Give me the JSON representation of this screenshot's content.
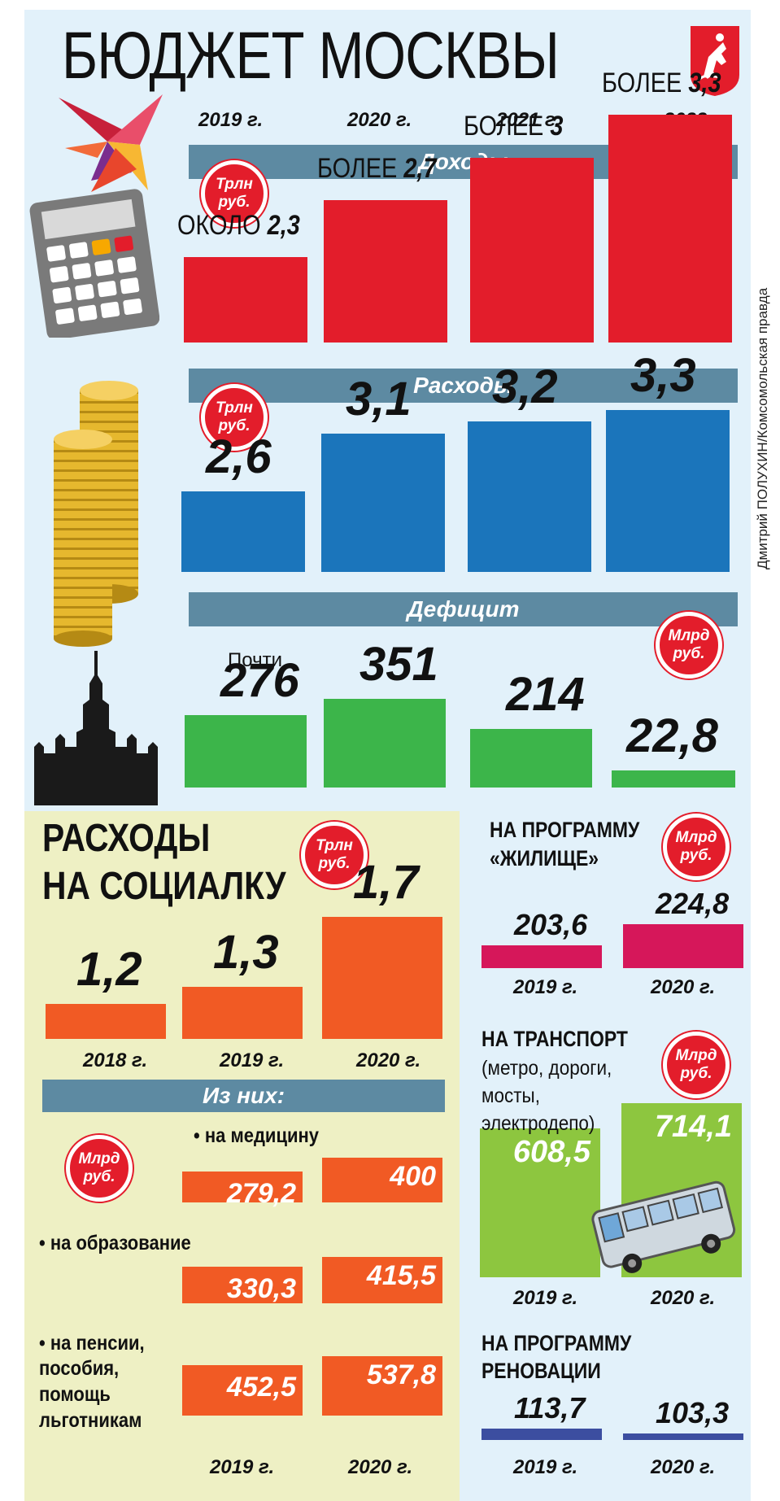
{
  "title": "БЮДЖЕТ МОСКВЫ",
  "credit": "Дмитрий ПОЛУХИН/Комсомольская правда",
  "colors": {
    "income": "#e31d2b",
    "expense": "#1b75bb",
    "deficit": "#3cb54a",
    "social": "#f15a24",
    "housing": "#d6175a",
    "transport": "#8dc63f",
    "renovation": "#3c4ea0",
    "ribbon": "#5d8aa2"
  },
  "units": {
    "trln_line1": "Трлн",
    "trln_line2": "руб.",
    "mlrd_line1": "Млрд",
    "mlrd_line2": "руб."
  },
  "years_main": [
    "2019 г.",
    "2020 г.",
    "2021 г.",
    "2022 г."
  ],
  "chart_data": [
    {
      "type": "bar",
      "title": "Доходы",
      "categories": [
        "2019 г.",
        "2020 г.",
        "2021 г.",
        "2022 г."
      ],
      "values": [
        2.3,
        2.7,
        3,
        3.3
      ],
      "prefixes": [
        "ОКОЛО",
        "БОЛЕЕ",
        "БОЛЕЕ",
        "БОЛЕЕ"
      ],
      "labels": [
        "2,3",
        "2,7",
        "3",
        "3,3"
      ]
    },
    {
      "type": "bar",
      "title": "Расходы",
      "categories": [
        "2019 г.",
        "2020 г.",
        "2021 г.",
        "2022 г."
      ],
      "values": [
        2.6,
        3.1,
        3.2,
        3.3
      ],
      "labels": [
        "2,6",
        "3,1",
        "3,2",
        "3,3"
      ]
    },
    {
      "type": "bar",
      "title": "Дефицит",
      "categories": [
        "2019 г.",
        "2020 г.",
        "2021 г.",
        "2022 г."
      ],
      "values": [
        276,
        351,
        214,
        22.8
      ],
      "labels": [
        "276",
        "351",
        "214",
        "22,8"
      ],
      "prefix_first": "Почти"
    },
    {
      "type": "bar",
      "title": "РАСХОДЫ НА СОЦИАЛКУ",
      "categories": [
        "2018 г.",
        "2019 г.",
        "2020 г."
      ],
      "values": [
        1.2,
        1.3,
        1.7
      ],
      "labels": [
        "1,2",
        "1,3",
        "1,7"
      ]
    },
    {
      "type": "bar",
      "title": "Из них:",
      "categories": [
        "2019 г.",
        "2020 г."
      ],
      "series": [
        {
          "name": "• на медицину",
          "values": [
            279.2,
            400
          ],
          "labels": [
            "279,2",
            "400"
          ]
        },
        {
          "name": "• на образование",
          "values": [
            330.3,
            415.5
          ],
          "labels": [
            "330,3",
            "415,5"
          ]
        },
        {
          "name": "• на пенсии, пособия, помощь льготникам",
          "values": [
            452.5,
            537.8
          ],
          "labels": [
            "452,5",
            "537,8"
          ]
        }
      ]
    },
    {
      "type": "bar",
      "title": "НА ПРОГРАММУ «ЖИЛИЩЕ»",
      "categories": [
        "2019 г.",
        "2020 г."
      ],
      "values": [
        203.6,
        224.8
      ],
      "labels": [
        "203,6",
        "224,8"
      ]
    },
    {
      "type": "bar",
      "title": "НА ТРАНСПОРТ",
      "subtitle": "(метро, дороги,\nмосты,\nэлектродепо)",
      "categories": [
        "2019 г.",
        "2020 г."
      ],
      "values": [
        608.5,
        714.1
      ],
      "labels": [
        "608,5",
        "714,1"
      ]
    },
    {
      "type": "bar",
      "title": "НА ПРОГРАММУ РЕНОВАЦИИ",
      "categories": [
        "2019 г.",
        "2020 г."
      ],
      "values": [
        113.7,
        103.3
      ],
      "labels": [
        "113,7",
        "103,3"
      ]
    }
  ],
  "social": {
    "title_line1": "РАСХОДЫ",
    "title_line2": "НА СОЦИАЛКУ",
    "bullet_med": "• на медицину",
    "bullet_edu": "• на образование",
    "bullet_pens1": "• на пенсии,",
    "bullet_pens2": "пособия,",
    "bullet_pens3": "помощь",
    "bullet_pens4": "льготникам"
  },
  "right": {
    "housing_line1": "НА ПРОГРАММУ",
    "housing_line2": "«ЖИЛИЩЕ»",
    "transport_title": "НА ТРАНСПОРТ",
    "transport_sub": "(метро, дороги,\nмосты,\nэлектродепо)",
    "reno_line1": "НА ПРОГРАММУ",
    "reno_line2": "РЕНОВАЦИИ"
  }
}
